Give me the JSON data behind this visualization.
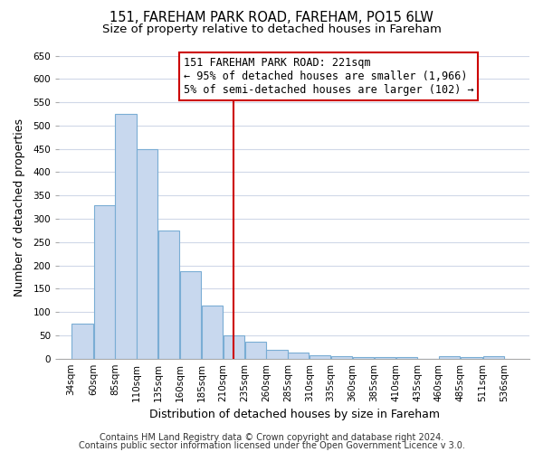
{
  "title": "151, FAREHAM PARK ROAD, FAREHAM, PO15 6LW",
  "subtitle": "Size of property relative to detached houses in Fareham",
  "xlabel": "Distribution of detached houses by size in Fareham",
  "ylabel": "Number of detached properties",
  "bar_left_edges": [
    34,
    60,
    85,
    110,
    135,
    160,
    185,
    210,
    235,
    260,
    285,
    310,
    335,
    360,
    385,
    410,
    435,
    460,
    485,
    511
  ],
  "bar_widths": [
    26,
    25,
    25,
    25,
    25,
    25,
    25,
    25,
    25,
    25,
    25,
    25,
    25,
    25,
    25,
    25,
    25,
    25,
    26,
    25
  ],
  "bar_heights": [
    75,
    330,
    525,
    450,
    275,
    187,
    114,
    50,
    37,
    19,
    13,
    8,
    5,
    4,
    4,
    3,
    0,
    5,
    4,
    5
  ],
  "tick_labels": [
    "34sqm",
    "60sqm",
    "85sqm",
    "110sqm",
    "135sqm",
    "160sqm",
    "185sqm",
    "210sqm",
    "235sqm",
    "260sqm",
    "285sqm",
    "310sqm",
    "335sqm",
    "360sqm",
    "385sqm",
    "410sqm",
    "435sqm",
    "460sqm",
    "485sqm",
    "511sqm",
    "536sqm"
  ],
  "tick_positions": [
    34,
    60,
    85,
    110,
    135,
    160,
    185,
    210,
    235,
    260,
    285,
    310,
    335,
    360,
    385,
    410,
    435,
    460,
    485,
    511,
    536
  ],
  "bar_color": "#c8d8ee",
  "bar_edge_color": "#7aadd4",
  "vline_x": 222,
  "vline_color": "#cc0000",
  "annotation_line1": "151 FAREHAM PARK ROAD: 221sqm",
  "annotation_line2": "← 95% of detached houses are smaller (1,966)",
  "annotation_line3": "5% of semi-detached houses are larger (102) →",
  "ylim": [
    0,
    650
  ],
  "yticks": [
    0,
    50,
    100,
    150,
    200,
    250,
    300,
    350,
    400,
    450,
    500,
    550,
    600,
    650
  ],
  "footer1": "Contains HM Land Registry data © Crown copyright and database right 2024.",
  "footer2": "Contains public sector information licensed under the Open Government Licence v 3.0.",
  "bg_color": "#ffffff",
  "plot_bg_color": "#ffffff",
  "grid_color": "#d0d8e8",
  "title_fontsize": 10.5,
  "subtitle_fontsize": 9.5,
  "axis_label_fontsize": 9,
  "tick_fontsize": 7.5,
  "footer_fontsize": 7,
  "ann_fontsize": 8.5
}
